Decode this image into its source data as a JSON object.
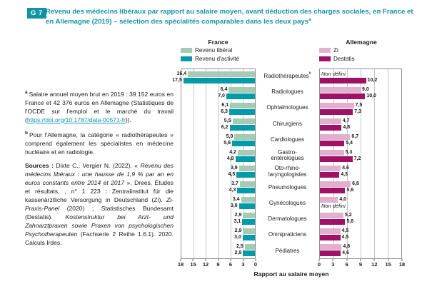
{
  "header": {
    "badge": "G 7",
    "title": "Revenu des médecins libéraux par rapport au salaire moyen, avant déduction des charges sociales, en France et en Allemagne (2019) – sélection des spécialités comparables dans les deux pays",
    "title_sup": "a"
  },
  "colors": {
    "accent_teal": "#1492a5",
    "france_liberal": "#a7cab5",
    "france_activite": "#009ba8",
    "de_zi": "#e2b0cc",
    "de_destatis": "#a11067"
  },
  "legend": {
    "france": {
      "title": "France",
      "items": [
        {
          "label": "Revenu libéral",
          "color": "#a7cab5"
        },
        {
          "label": "Revenu d'activité",
          "color": "#009ba8"
        }
      ]
    },
    "allemagne": {
      "title": "Allemagne",
      "items": [
        {
          "label": "Zi",
          "color": "#e2b0cc"
        },
        {
          "label": "Destatis",
          "color": "#a11067"
        }
      ]
    }
  },
  "notes": {
    "a": {
      "marker": "a",
      "text_before_link": "Salaire annuel moyen brut en 2019 : 39 152 euros en France et 42 376 euros en Allemagne (Statistiques de l'OCDE sur l'emploi et le marché du travail (",
      "link": "https://doi.org/10.1787/data-00571-fr",
      "text_after_link": "))."
    },
    "b": {
      "marker": "b",
      "text": "Pour l'Allemagne, la catégorie « radiothérapeutes » comprend également les spécialistes en médecine nucléaire et en radiologie."
    },
    "sources": {
      "label": "Sources :",
      "s1": " Dixte C., Vergier N. (2022). « ",
      "s2_italic": "Revenu des médecins libéraux : une hausse de 1,9 % par an en euros constants entre 2014 et 2017",
      "s3": " ». Drees, Études et résultats, , n° 1 223 ; Zentralinstitut für die kassenärztliche Versorgung in Deutschland (Zi). ",
      "s4_italic": "Zi-Praxis-Panel",
      "s5": " (2020) ; Statistisches Bundesamt (Destatis). ",
      "s6_italic": "Kostenstruktur bei Arzt- und Zahnarztpraxen sowie Praxen von psychologischen Psychotherapeuten",
      "s7": " (Fachserie 2 Reihe 1.6.1). 2020. Calculs Irdes."
    }
  },
  "chart_data": {
    "type": "bar",
    "orientation": "mirrored-horizontal",
    "axis_max": 18,
    "null_label": "Non défini",
    "xlabel": "Rapport au salaire moyen",
    "categories": [
      {
        "label": "Radiothérapeutes",
        "sup": "b"
      },
      {
        "label": "Radiologues"
      },
      {
        "label": "Ophtalmologues"
      },
      {
        "label": "Chirurgiens"
      },
      {
        "label": "Cardiologues"
      },
      {
        "label": "Gastro-\nentérologues"
      },
      {
        "label": "Oto-rhino-\nlaryngologistes"
      },
      {
        "label": "Pneumologues"
      },
      {
        "label": "Gynécologues"
      },
      {
        "label": "Dermatologues"
      },
      {
        "label": "Omnipraticiens"
      },
      {
        "label": "Pédiatres"
      }
    ],
    "left_panel": {
      "title": "France",
      "axis_ticks": [
        18,
        15,
        12,
        9,
        6,
        3,
        0
      ],
      "series": [
        {
          "key": "revenu-liberal",
          "name": "Revenu libéral",
          "color": "#a7cab5",
          "values": [
            16.4,
            6.4,
            6.1,
            5.5,
            5.0,
            4.2,
            3.9,
            3.7,
            3.4,
            2.9,
            2.9,
            2.5
          ]
        },
        {
          "key": "revenu-activite",
          "name": "Revenu d'activité",
          "color": "#009ba8",
          "values": [
            17.5,
            7.0,
            6.3,
            6.2,
            5.6,
            4.8,
            4.5,
            4.3,
            3.9,
            3.1,
            3.0,
            2.9
          ]
        }
      ]
    },
    "right_panel": {
      "title": "Allemagne",
      "axis_ticks": [
        0,
        3,
        6,
        9,
        12,
        15,
        18
      ],
      "series": [
        {
          "key": "zi",
          "name": "Zi",
          "color": "#e2b0cc",
          "values": [
            null,
            9.0,
            7.5,
            4.7,
            6.7,
            5.3,
            4.6,
            6.8,
            4.0,
            5.2,
            4.5,
            4.8
          ]
        },
        {
          "key": "destatis",
          "name": "Destatis",
          "color": "#a11067",
          "values": [
            10.2,
            10.0,
            7.3,
            4.8,
            5.4,
            7.2,
            4.3,
            5.6,
            null,
            5.6,
            4.5,
            4.6
          ]
        }
      ]
    }
  }
}
